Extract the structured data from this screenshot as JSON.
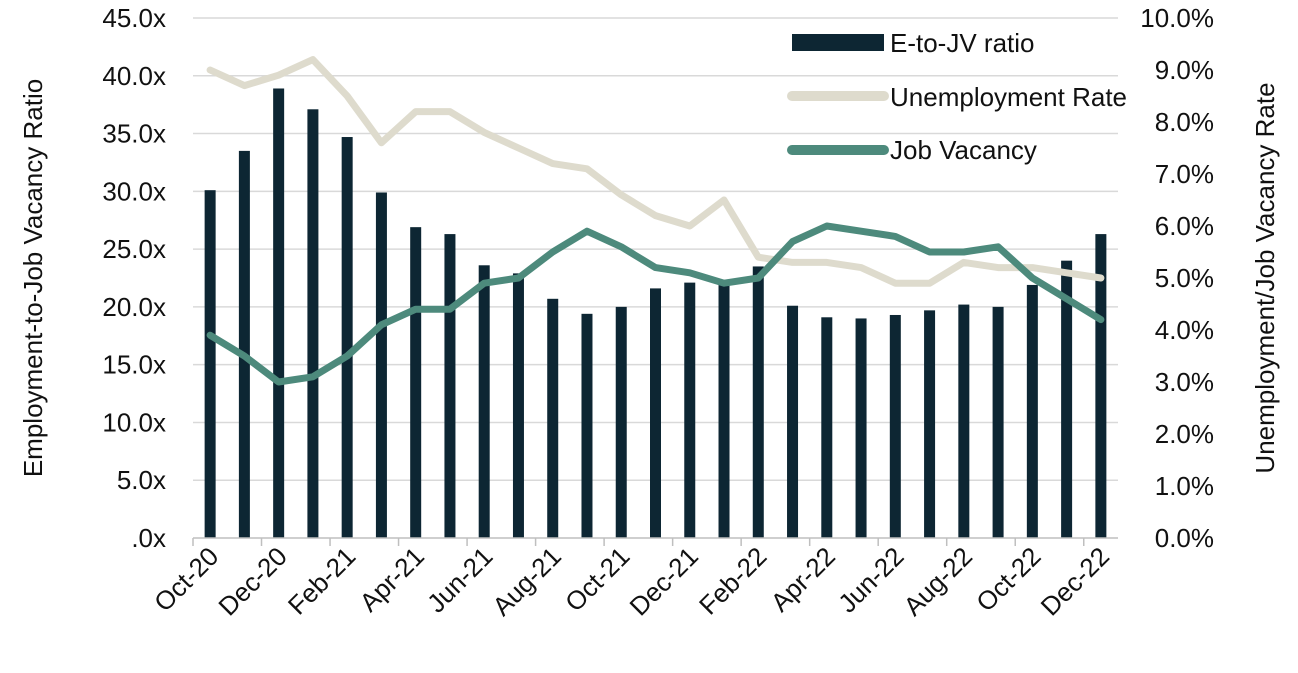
{
  "chart_data": {
    "type": "bar+line",
    "categories": [
      "Oct-20",
      "Nov-20",
      "Dec-20",
      "Jan-21",
      "Feb-21",
      "Mar-21",
      "Apr-21",
      "May-21",
      "Jun-21",
      "Jul-21",
      "Aug-21",
      "Sep-21",
      "Oct-21",
      "Nov-21",
      "Dec-21",
      "Jan-22",
      "Feb-22",
      "Mar-22",
      "Apr-22",
      "May-22",
      "Jun-22",
      "Jul-22",
      "Aug-22",
      "Sep-22",
      "Oct-22",
      "Nov-22",
      "Dec-22"
    ],
    "x_tick_labels": [
      "Oct-20",
      "Dec-20",
      "Feb-21",
      "Apr-21",
      "Jun-21",
      "Aug-21",
      "Oct-21",
      "Dec-21",
      "Feb-22",
      "Apr-22",
      "Jun-22",
      "Aug-22",
      "Oct-22",
      "Dec-22"
    ],
    "series": [
      {
        "name": "E-to-JV ratio",
        "kind": "bar",
        "axis": "left",
        "color": "#0d2633",
        "values": [
          30.1,
          33.5,
          38.9,
          37.1,
          34.7,
          29.9,
          26.9,
          26.3,
          23.6,
          22.9,
          20.7,
          19.4,
          20.0,
          21.6,
          22.1,
          22.0,
          23.5,
          20.1,
          19.1,
          19.0,
          19.3,
          19.7,
          20.2,
          20.0,
          21.9,
          24.0,
          26.3
        ]
      },
      {
        "name": "Unemployment Rate",
        "kind": "line",
        "axis": "right",
        "color": "#dedbcd",
        "values": [
          9.0,
          8.7,
          8.9,
          9.2,
          8.5,
          7.6,
          8.2,
          8.2,
          7.8,
          7.5,
          7.2,
          7.1,
          6.6,
          6.2,
          6.0,
          6.5,
          5.4,
          5.3,
          5.3,
          5.2,
          4.9,
          4.9,
          5.3,
          5.2,
          5.2,
          5.1,
          5.0
        ]
      },
      {
        "name": "Job Vacancy",
        "kind": "line",
        "axis": "right",
        "color": "#4d8a7c",
        "values": [
          3.9,
          3.5,
          3.0,
          3.1,
          3.5,
          4.1,
          4.4,
          4.4,
          4.9,
          5.0,
          5.5,
          5.9,
          5.6,
          5.2,
          5.1,
          4.9,
          5.0,
          5.7,
          6.0,
          5.9,
          5.8,
          5.5,
          5.5,
          5.6,
          5.0,
          4.6,
          4.2
        ]
      }
    ],
    "y_left": {
      "label": "Employment-to-Job Vacancy Ratio",
      "range": [
        0,
        45
      ],
      "step": 5,
      "tick_labels": [
        ".0x",
        "5.0x",
        "10.0x",
        "15.0x",
        "20.0x",
        "25.0x",
        "30.0x",
        "35.0x",
        "40.0x",
        "45.0x"
      ]
    },
    "y_right": {
      "label": "Unemployment/Job Vacancy Rate",
      "range": [
        0,
        10
      ],
      "step": 1,
      "tick_labels": [
        "0.0%",
        "1.0%",
        "2.0%",
        "3.0%",
        "4.0%",
        "5.0%",
        "6.0%",
        "7.0%",
        "8.0%",
        "9.0%",
        "10.0%"
      ]
    },
    "grid": true,
    "legend": {
      "placement": "top-right",
      "labels": [
        "E-to-JV ratio",
        "Unemployment Rate",
        "Job Vacancy"
      ]
    }
  }
}
